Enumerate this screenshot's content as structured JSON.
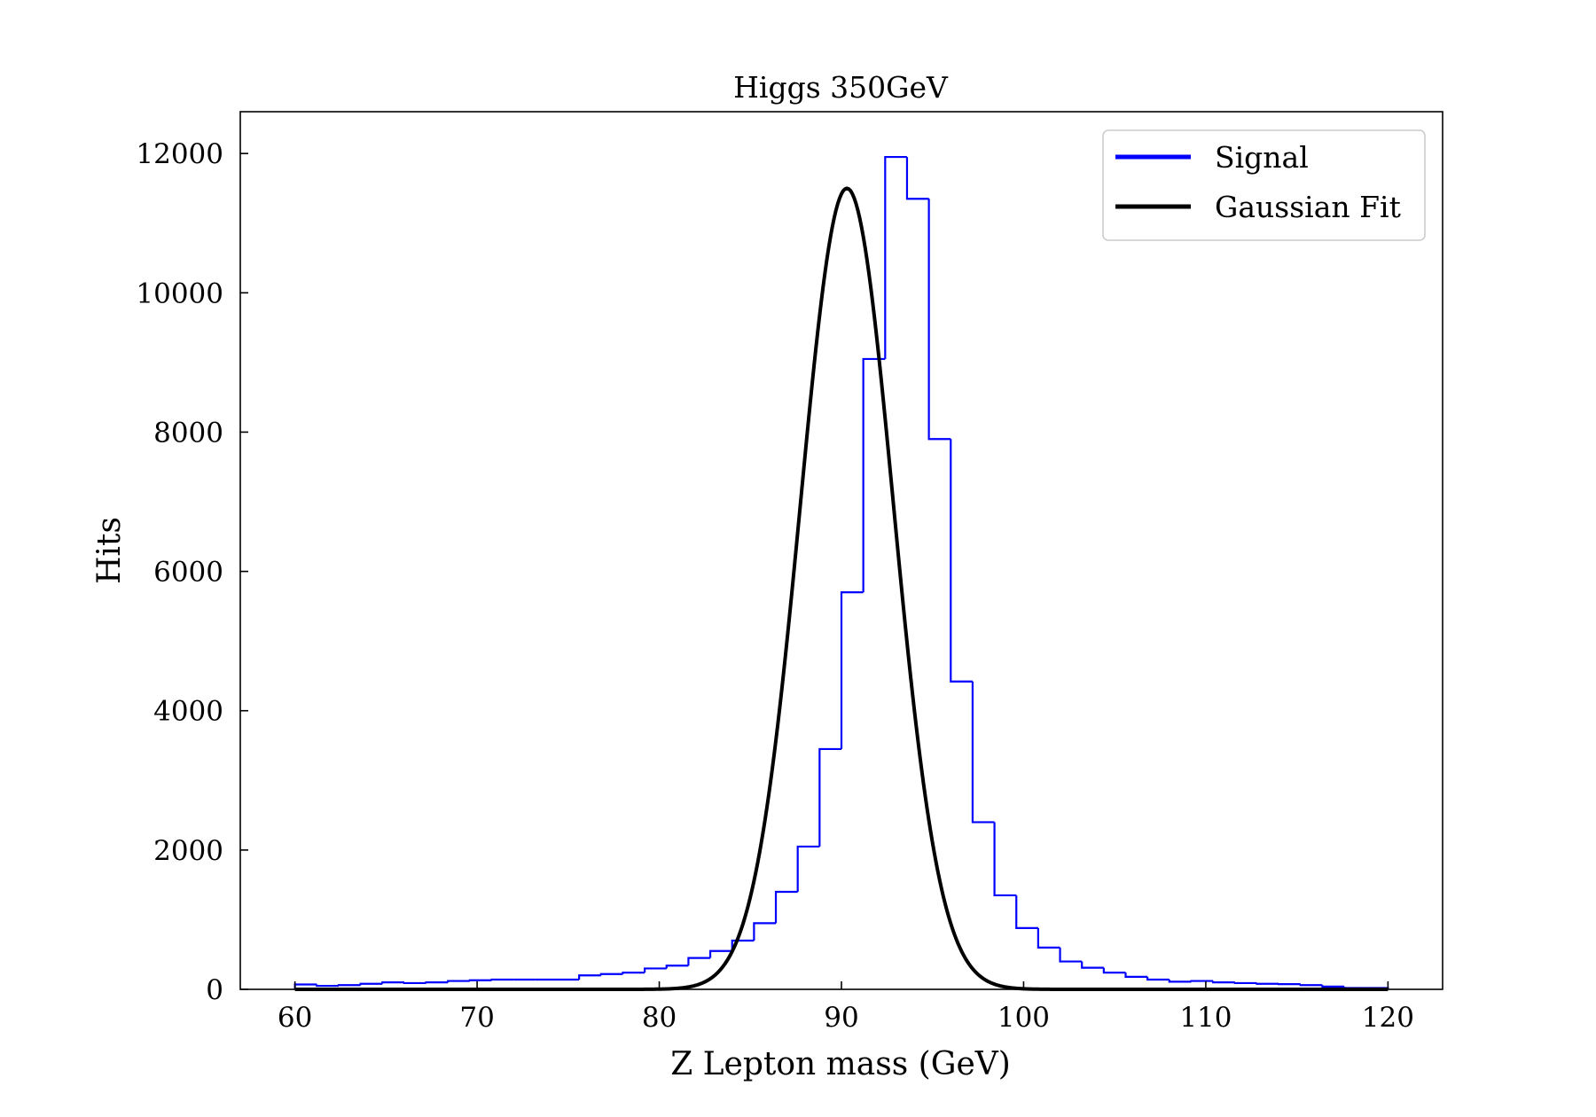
{
  "chart_data": {
    "type": "histogram",
    "title": "Higgs 350GeV",
    "xlabel": "Z Lepton mass (GeV)",
    "ylabel": "Hits",
    "xlim": [
      57,
      123
    ],
    "ylim": [
      0,
      12600
    ],
    "xticks": [
      60,
      70,
      80,
      90,
      100,
      110,
      120
    ],
    "yticks": [
      0,
      2000,
      4000,
      6000,
      8000,
      10000,
      12000
    ],
    "grid": false,
    "legend_position": "top-right",
    "bin_edges": [
      60,
      61.2,
      62.4,
      63.6,
      64.8,
      66,
      67.2,
      68.4,
      69.6,
      70.8,
      72,
      73.2,
      74.4,
      75.6,
      76.8,
      78,
      79.2,
      80.4,
      81.6,
      82.8,
      84,
      85.2,
      86.4,
      87.6,
      88.8,
      90,
      91.2,
      92.4,
      93.6,
      94.8,
      96,
      97.2,
      98.4,
      99.6,
      100.8,
      102,
      103.2,
      104.4,
      105.6,
      106.8,
      108,
      109.2,
      110.4,
      111.6,
      112.8,
      114,
      115.2,
      116.4,
      117.6,
      118.8,
      120
    ],
    "series": [
      {
        "name": "Signal",
        "kind": "step-histogram",
        "color": "#0000ff",
        "values": [
          70,
          50,
          60,
          80,
          100,
          90,
          100,
          120,
          130,
          140,
          140,
          140,
          140,
          200,
          220,
          240,
          300,
          340,
          450,
          550,
          700,
          950,
          1400,
          2050,
          3450,
          5700,
          9050,
          11950,
          11350,
          7900,
          4420,
          2400,
          1350,
          880,
          600,
          400,
          310,
          240,
          180,
          140,
          110,
          120,
          100,
          90,
          80,
          75,
          60,
          40,
          20,
          20
        ]
      },
      {
        "name": "Gaussian Fit",
        "kind": "curve",
        "color": "#000000",
        "amplitude": 11500,
        "mean": 90.3,
        "sigma": 2.55
      }
    ]
  }
}
